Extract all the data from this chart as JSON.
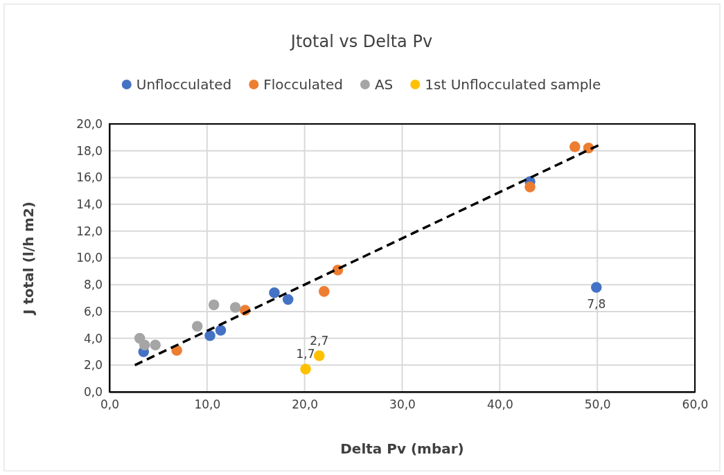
{
  "chart_data": {
    "type": "scatter",
    "title": "Jtotal vs Delta Pv",
    "xlabel": "Delta Pv (mbar)",
    "ylabel": "J total (l/h m2)",
    "xlim": [
      0,
      60
    ],
    "xticks": [
      {
        "value": 0,
        "label": "0,0"
      },
      {
        "value": 10,
        "label": "10,0"
      },
      {
        "value": 20,
        "label": "20,0"
      },
      {
        "value": 30,
        "label": "30,0"
      },
      {
        "value": 40,
        "label": "40,0"
      },
      {
        "value": 50,
        "label": "50,0"
      },
      {
        "value": 60,
        "label": "60,0"
      }
    ],
    "ylim": [
      0,
      20
    ],
    "yticks": [
      {
        "value": 0,
        "label": "0,0"
      },
      {
        "value": 2,
        "label": "2,0"
      },
      {
        "value": 4,
        "label": "4,0"
      },
      {
        "value": 6,
        "label": "6,0"
      },
      {
        "value": 8,
        "label": "8,0"
      },
      {
        "value": 10,
        "label": "10,0"
      },
      {
        "value": 12,
        "label": "12,0"
      },
      {
        "value": 14,
        "label": "14,0"
      },
      {
        "value": 16,
        "label": "16,0"
      },
      {
        "value": 18,
        "label": "18,0"
      },
      {
        "value": 20,
        "label": "20,0"
      }
    ],
    "grid": true,
    "legend": "top",
    "marker": "circle",
    "series": [
      {
        "name": "Unflocculated",
        "color": "#4472c4",
        "x": [
          3.5,
          10.3,
          11.4,
          16.9,
          18.3,
          43.1,
          49.9
        ],
        "values": [
          3.0,
          4.2,
          4.6,
          7.4,
          6.9,
          15.7,
          7.8
        ],
        "value_labels": [
          null,
          null,
          null,
          null,
          null,
          null,
          "7,8"
        ]
      },
      {
        "name": "Flocculated",
        "color": "#ed7d31",
        "x": [
          6.9,
          13.9,
          22.0,
          23.4,
          43.1,
          47.7,
          49.1
        ],
        "values": [
          3.1,
          6.1,
          7.5,
          9.1,
          15.3,
          18.3,
          18.2
        ]
      },
      {
        "name": "AS",
        "color": "#a5a5a5",
        "x": [
          3.1,
          3.6,
          4.7,
          9.0,
          10.7,
          12.9
        ],
        "values": [
          4.0,
          3.5,
          3.5,
          4.9,
          6.5,
          6.3
        ]
      },
      {
        "name": "1st Unflocculated sample",
        "color": "#ffc000",
        "x": [
          20.1,
          21.5
        ],
        "values": [
          1.7,
          2.7
        ],
        "value_labels": [
          "1,7",
          "2,7"
        ]
      },
      {
        "type": "line",
        "color": "#000000",
        "line_style": "dashed",
        "marker": "none",
        "x": [
          2.6,
          50.1
        ],
        "values": [
          2.0,
          18.4
        ]
      }
    ]
  }
}
